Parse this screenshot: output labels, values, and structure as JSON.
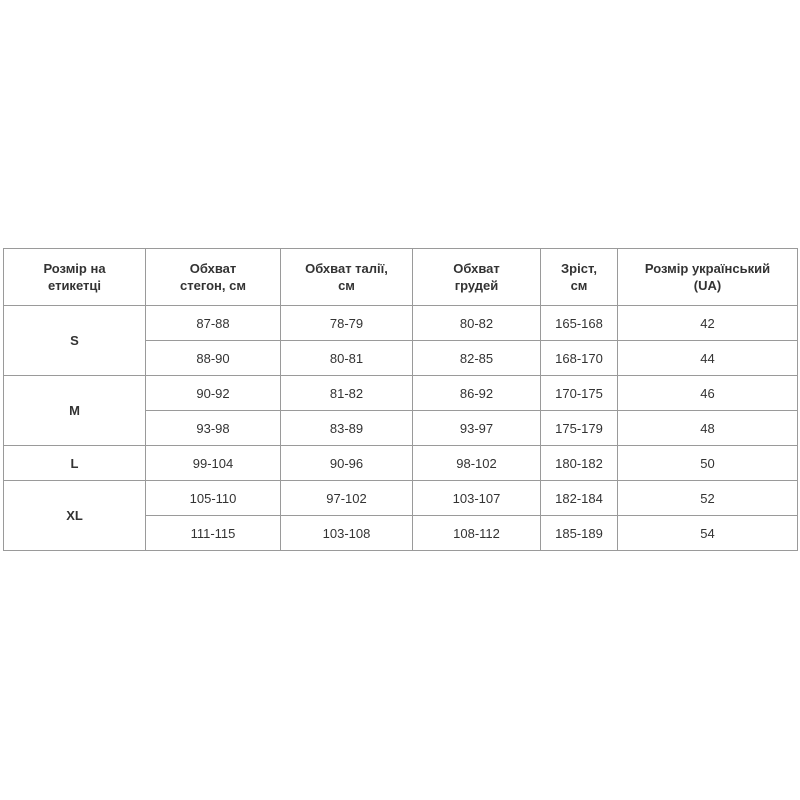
{
  "table": {
    "header": [
      [
        "Розмір на",
        "етикетці"
      ],
      [
        "Обхват",
        "стегон, см"
      ],
      [
        "Обхват талії,",
        "см"
      ],
      [
        "Обхват",
        "грудей"
      ],
      [
        "Зріст,",
        "см"
      ],
      [
        "Розмір український",
        "(UA)"
      ]
    ],
    "groups": [
      {
        "size": "S",
        "rows": [
          [
            "87-88",
            "78-79",
            "80-82",
            "165-168",
            42
          ],
          [
            "88-90",
            "80-81",
            "82-85",
            "168-170",
            44
          ]
        ]
      },
      {
        "size": "M",
        "rows": [
          [
            "90-92",
            "81-82",
            "86-92",
            "170-175",
            46
          ],
          [
            "93-98",
            "83-89",
            "93-97",
            "175-179",
            48
          ]
        ]
      },
      {
        "size": "L",
        "rows": [
          [
            "99-104",
            "90-96",
            "98-102",
            "180-182",
            50
          ]
        ]
      },
      {
        "size": "XL",
        "rows": [
          [
            "105-110",
            "97-102",
            "103-107",
            "182-184",
            52
          ],
          [
            "111-115",
            "103-108",
            "108-112",
            "185-189",
            54
          ]
        ]
      }
    ]
  }
}
